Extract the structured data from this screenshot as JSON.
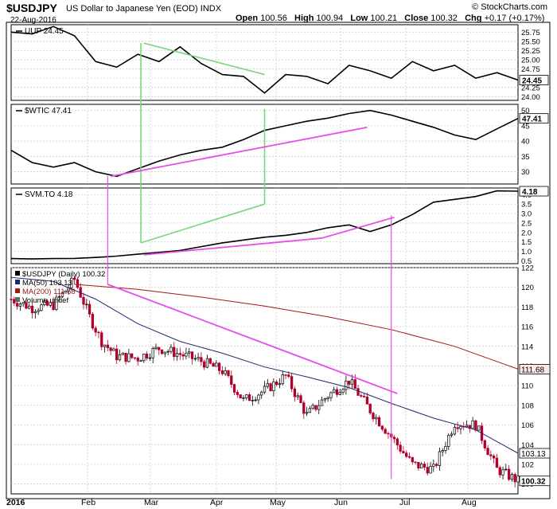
{
  "header": {
    "symbol": "$USDJPY",
    "name": "US Dollar to Japanese Yen (EOD)",
    "exchange": "INDX",
    "date": "22-Aug-2016",
    "open_label": "Open",
    "open": "100.56",
    "high_label": "High",
    "high": "100.94",
    "low_label": "Low",
    "low": "100.21",
    "close_label": "Close",
    "close": "100.32",
    "chg_label": "Chg",
    "chg": "+0.17 (+0.17%)",
    "source": "© StockCharts.com"
  },
  "colors": {
    "price": "#000000",
    "down_candle": "#b0002a",
    "ma50": "#1c2a6e",
    "ma200": "#a01818",
    "green_lines": "#7ed47e",
    "magenta_lines": "#e84ce8",
    "badge_bg": "#ffffff",
    "ma200_badge_bg": "#ffe8e8"
  },
  "x_axis": {
    "ticks": [
      "2016",
      "Feb",
      "Mar",
      "Apr",
      "May",
      "Jun",
      "Jul",
      "Aug"
    ],
    "first_tick_bold": true,
    "days": 168
  },
  "chart_data": [
    {
      "panel": "uup",
      "type": "line",
      "label": "UUP 24.45",
      "ylim": [
        23.9,
        25.95
      ],
      "yticks": [
        "25.75",
        "25.50",
        "25.25",
        "25.00",
        "24.75",
        "24.50",
        "24.25",
        "24.00"
      ],
      "badge": "24.45",
      "x": [
        0,
        7,
        14,
        21,
        28,
        35,
        42,
        49,
        56,
        63,
        70,
        77,
        84,
        91,
        98,
        105,
        112,
        119,
        126,
        133,
        140,
        147,
        154,
        161,
        168
      ],
      "y": [
        25.75,
        25.7,
        25.9,
        25.65,
        24.95,
        24.8,
        25.15,
        24.95,
        25.35,
        24.9,
        24.6,
        24.55,
        24.1,
        24.6,
        24.55,
        24.35,
        24.85,
        24.7,
        24.5,
        24.95,
        24.7,
        24.85,
        24.5,
        24.65,
        24.45
      ]
    },
    {
      "panel": "wtic",
      "type": "line",
      "label": "$WTIC 47.41",
      "ylim": [
        26,
        52
      ],
      "yticks": [
        "50",
        "45",
        "40",
        "35",
        "30"
      ],
      "badge": "47.41",
      "x": [
        0,
        7,
        14,
        21,
        28,
        35,
        42,
        49,
        56,
        63,
        70,
        77,
        84,
        91,
        98,
        105,
        112,
        119,
        126,
        133,
        140,
        147,
        154,
        161,
        168
      ],
      "y": [
        37.0,
        33.0,
        31.5,
        33.0,
        30.0,
        28.5,
        31.0,
        33.5,
        35.5,
        37.0,
        38.0,
        40.5,
        43.5,
        45.0,
        46.5,
        47.5,
        49.0,
        50.0,
        48.5,
        46.5,
        44.5,
        42.0,
        40.5,
        44.0,
        47.41
      ]
    },
    {
      "panel": "svm",
      "type": "line",
      "label": "SVM.TO 4.18",
      "ylim": [
        0.35,
        4.35
      ],
      "yticks": [
        "4.0",
        "3.5",
        "3.0",
        "2.5",
        "2.0",
        "1.5",
        "1.0",
        "0.5"
      ],
      "badge": "4.18",
      "x": [
        0,
        7,
        14,
        21,
        28,
        35,
        42,
        49,
        56,
        63,
        70,
        77,
        84,
        91,
        98,
        105,
        112,
        119,
        126,
        133,
        140,
        147,
        154,
        161,
        168
      ],
      "y": [
        0.62,
        0.6,
        0.62,
        0.63,
        0.68,
        0.75,
        0.85,
        0.95,
        1.05,
        1.25,
        1.45,
        1.6,
        1.75,
        1.85,
        2.0,
        2.25,
        2.4,
        2.05,
        2.4,
        2.95,
        3.6,
        3.75,
        3.9,
        4.2,
        4.18
      ]
    },
    {
      "panel": "usdjpy",
      "type": "candlestick",
      "label": "$USDJPY (Daily) 100.32",
      "ylim": [
        99.0,
        122.0
      ],
      "yticks": [
        "122",
        "120",
        "118",
        "116",
        "114",
        "112",
        "110",
        "108",
        "106",
        "104",
        "102",
        "100"
      ],
      "legend": [
        {
          "key": "price",
          "text": "$USDJPY (Daily) 100.32"
        },
        {
          "key": "ma50",
          "text": "MA(50) 103.13"
        },
        {
          "key": "ma200",
          "text": "MA(200) 111.68"
        },
        {
          "key": "volume",
          "text": "Volume undef"
        }
      ],
      "closes": [
        {
          "x": 0,
          "y": 118.8
        },
        {
          "x": 7,
          "y": 117.9
        },
        {
          "x": 14,
          "y": 118.2
        },
        {
          "x": 21,
          "y": 120.8
        },
        {
          "x": 26,
          "y": 117.0
        },
        {
          "x": 30,
          "y": 114.5
        },
        {
          "x": 35,
          "y": 113.0
        },
        {
          "x": 42,
          "y": 112.8
        },
        {
          "x": 49,
          "y": 113.8
        },
        {
          "x": 56,
          "y": 113.2
        },
        {
          "x": 63,
          "y": 112.5
        },
        {
          "x": 70,
          "y": 111.5
        },
        {
          "x": 77,
          "y": 108.5
        },
        {
          "x": 84,
          "y": 109.5
        },
        {
          "x": 91,
          "y": 111.0
        },
        {
          "x": 98,
          "y": 107.0
        },
        {
          "x": 105,
          "y": 109.0
        },
        {
          "x": 112,
          "y": 110.5
        },
        {
          "x": 119,
          "y": 107.5
        },
        {
          "x": 126,
          "y": 104.8
        },
        {
          "x": 133,
          "y": 102.0
        },
        {
          "x": 140,
          "y": 101.5
        },
        {
          "x": 147,
          "y": 106.2
        },
        {
          "x": 154,
          "y": 106.0
        },
        {
          "x": 161,
          "y": 101.5
        },
        {
          "x": 168,
          "y": 100.32
        }
      ],
      "ma50": {
        "badge": "103.13",
        "x": [
          0,
          14,
          28,
          42,
          56,
          70,
          84,
          98,
          112,
          126,
          140,
          154,
          168
        ],
        "y": [
          121.0,
          120.6,
          118.8,
          116.3,
          114.5,
          113.3,
          111.9,
          110.9,
          109.8,
          108.2,
          106.7,
          105.5,
          103.13
        ]
      },
      "ma200": {
        "badge": "111.68",
        "x": [
          21,
          42,
          63,
          84,
          105,
          126,
          147,
          168
        ],
        "y": [
          120.3,
          119.8,
          119.0,
          118.1,
          117.0,
          115.7,
          114.0,
          111.68
        ]
      }
    }
  ],
  "annotations": {
    "green_trendlines": [
      {
        "panel": "uup",
        "from": {
          "x": 44,
          "y": 25.45
        },
        "to": {
          "x": 84,
          "y": 24.6
        }
      },
      {
        "panel": "svm",
        "from": {
          "x": 43,
          "y": 1.45
        },
        "to": {
          "x": 84,
          "y": 3.5
        }
      }
    ],
    "green_verticals": [
      {
        "x": 43,
        "from_panel": "uup",
        "from_y": 25.45,
        "to_panel": "svm",
        "to_y": 1.45
      },
      {
        "x": 84,
        "from_panel": "wtic",
        "from_y": 50.5,
        "to_panel": "svm",
        "to_y": 3.5
      }
    ],
    "magenta_trendlines": [
      {
        "panel": "wtic",
        "from": {
          "x": 33,
          "y": 28.5
        },
        "to": {
          "x": 118,
          "y": 44.5
        }
      },
      {
        "panel": "svm",
        "from": {
          "x": 44,
          "y": 0.82
        },
        "to": {
          "x": 103,
          "y": 1.7
        }
      },
      {
        "panel": "svm",
        "from": {
          "x": 103,
          "y": 1.7
        },
        "to": {
          "x": 127,
          "y": 2.8
        }
      },
      {
        "panel": "usdjpy",
        "from": {
          "x": 32,
          "y": 120.3
        },
        "to": {
          "x": 128,
          "y": 109.2
        }
      }
    ],
    "magenta_verticals": [
      {
        "x": 32,
        "from_panel": "wtic",
        "from_y": 28.5,
        "to_panel": "usdjpy",
        "to_y": 120.3
      },
      {
        "x": 126,
        "from_panel": "svm",
        "from_y": 2.9,
        "to_panel": "usdjpy",
        "to_y": 100.5
      }
    ]
  }
}
